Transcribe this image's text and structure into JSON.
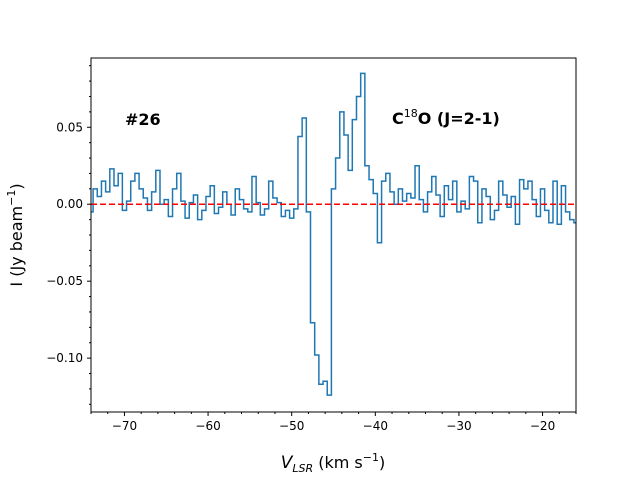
{
  "chart_data": {
    "type": "line",
    "step": true,
    "title": "",
    "label_id": "#26",
    "molecule": {
      "prefix": "C",
      "sup": "18",
      "suffix": "O (J=2-1)"
    },
    "xlabel": {
      "main": "V",
      "sub": "LSR",
      "units": " (km s",
      "sup": "−1",
      "close": ")"
    },
    "ylabel": {
      "main": "I (Jy beam",
      "sup": "−1",
      "close": ")"
    },
    "xlim": [
      -74,
      -16
    ],
    "ylim": [
      -0.135,
      0.095
    ],
    "xticks": [
      -70,
      -60,
      -50,
      -40,
      -30,
      -20
    ],
    "xtick_labels": [
      "−70",
      "−60",
      "−50",
      "−40",
      "−30",
      "−20"
    ],
    "yticks": [
      -0.1,
      -0.05,
      0.0,
      0.05
    ],
    "ytick_labels": [
      "−0.10",
      "−0.05",
      "0.00",
      "0.05"
    ],
    "line_color": "#1f77b4",
    "baseline": {
      "value": 0.0,
      "color": "#ff0000",
      "style": "dashed"
    },
    "x": [
      -74.0,
      -73.5,
      -73.0,
      -72.5,
      -72.0,
      -71.5,
      -71.0,
      -70.5,
      -70.0,
      -69.5,
      -69.0,
      -68.5,
      -68.0,
      -67.5,
      -67.0,
      -66.5,
      -66.0,
      -65.5,
      -65.0,
      -64.5,
      -64.0,
      -63.5,
      -63.0,
      -62.5,
      -62.0,
      -61.5,
      -61.0,
      -60.5,
      -60.0,
      -59.5,
      -59.0,
      -58.5,
      -58.0,
      -57.5,
      -57.0,
      -56.5,
      -56.0,
      -55.5,
      -55.0,
      -54.5,
      -54.0,
      -53.5,
      -53.0,
      -52.5,
      -52.0,
      -51.5,
      -51.0,
      -50.5,
      -50.0,
      -49.5,
      -49.0,
      -48.5,
      -48.0,
      -47.5,
      -47.0,
      -46.5,
      -46.0,
      -45.5,
      -45.0,
      -44.5,
      -44.0,
      -43.5,
      -43.0,
      -42.5,
      -42.0,
      -41.5,
      -41.0,
      -40.5,
      -40.0,
      -39.5,
      -39.0,
      -38.5,
      -38.0,
      -37.5,
      -37.0,
      -36.5,
      -36.0,
      -35.5,
      -35.0,
      -34.5,
      -34.0,
      -33.5,
      -33.0,
      -32.5,
      -32.0,
      -31.5,
      -31.0,
      -30.5,
      -30.0,
      -29.5,
      -29.0,
      -28.5,
      -28.0,
      -27.5,
      -27.0,
      -26.5,
      -26.0,
      -25.5,
      -25.0,
      -24.5,
      -24.0,
      -23.5,
      -23.0,
      -22.5,
      -22.0,
      -21.5,
      -21.0,
      -20.5,
      -20.0,
      -19.5,
      -19.0,
      -18.5,
      -18.0,
      -17.5,
      -17.0,
      -16.5,
      -16.0
    ],
    "y": [
      -0.005,
      0.01,
      0.005,
      0.015,
      0.008,
      0.023,
      0.012,
      0.02,
      -0.004,
      0.002,
      0.015,
      0.02,
      0.01,
      0.004,
      -0.004,
      0.008,
      0.022,
      0.0,
      0.003,
      -0.008,
      0.01,
      0.02,
      0.002,
      -0.009,
      0.001,
      0.006,
      -0.01,
      -0.004,
      0.005,
      0.012,
      -0.006,
      -0.002,
      0.008,
      0.0,
      -0.007,
      0.01,
      0.003,
      -0.003,
      -0.005,
      0.018,
      0.001,
      -0.007,
      -0.003,
      0.015,
      0.004,
      0.001,
      -0.008,
      -0.004,
      -0.009,
      -0.003,
      0.044,
      0.056,
      -0.005,
      -0.077,
      -0.098,
      -0.117,
      -0.115,
      -0.124,
      0.01,
      0.03,
      0.06,
      0.045,
      0.022,
      0.055,
      0.07,
      0.085,
      0.025,
      0.016,
      0.007,
      -0.025,
      0.015,
      0.02,
      0.008,
      0.0,
      0.01,
      0.002,
      0.007,
      0.004,
      0.025,
      0.003,
      -0.005,
      0.008,
      0.018,
      0.006,
      -0.008,
      0.012,
      0.003,
      0.015,
      -0.005,
      0.002,
      -0.003,
      0.018,
      0.015,
      -0.012,
      0.01,
      0.005,
      -0.01,
      -0.004,
      0.015,
      0.006,
      -0.002,
      0.005,
      -0.013,
      0.016,
      0.01,
      0.015,
      0.003,
      -0.008,
      0.01,
      -0.004,
      -0.012,
      0.015,
      -0.013,
      0.012,
      -0.005,
      -0.01,
      -0.012
    ]
  }
}
